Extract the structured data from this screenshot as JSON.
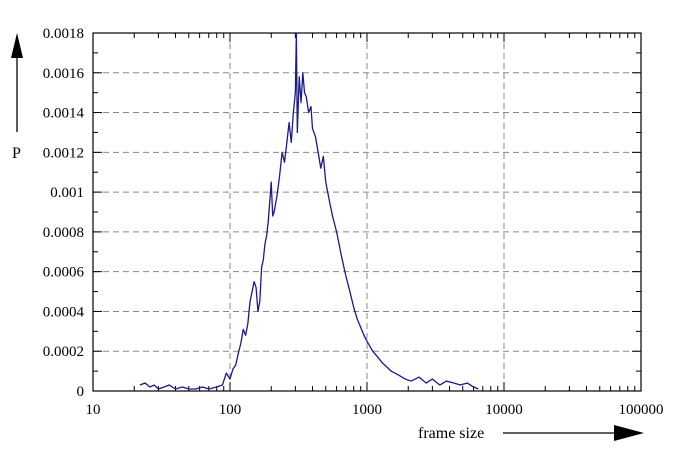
{
  "chart_data": {
    "type": "line",
    "title": "",
    "xlabel": "frame size",
    "ylabel": "P",
    "xscale": "log",
    "xlim": [
      10,
      100000
    ],
    "ylim": [
      0,
      0.0018
    ],
    "grid": true,
    "x_ticks": [
      10,
      100,
      1000,
      10000,
      100000
    ],
    "x_tick_labels": [
      "10",
      "100",
      "1000",
      "10000",
      "100000"
    ],
    "y_ticks": [
      0,
      0.0002,
      0.0004,
      0.0006,
      0.0008,
      0.001,
      0.0012,
      0.0014,
      0.0016,
      0.0018
    ],
    "y_tick_labels": [
      "0",
      "0.0002",
      "0.0004",
      "0.0006",
      "0.0008",
      "0.001",
      "0.0012",
      "0.0014",
      "0.0016",
      "0.0018"
    ],
    "series_color": "#1a1a8c",
    "series": [
      {
        "name": "",
        "points": [
          [
            22,
            3e-05
          ],
          [
            24,
            4e-05
          ],
          [
            26,
            2e-05
          ],
          [
            28,
            3e-05
          ],
          [
            30,
            1e-05
          ],
          [
            33,
            2e-05
          ],
          [
            36,
            3e-05
          ],
          [
            40,
            1e-05
          ],
          [
            45,
            2e-05
          ],
          [
            50,
            1e-05
          ],
          [
            56,
            1e-05
          ],
          [
            63,
            2e-05
          ],
          [
            70,
            1e-05
          ],
          [
            80,
            2e-05
          ],
          [
            88,
            3e-05
          ],
          [
            94,
            9e-05
          ],
          [
            100,
            6e-05
          ],
          [
            105,
            0.00011
          ],
          [
            110,
            0.00013
          ],
          [
            115,
            0.00019
          ],
          [
            120,
            0.00024
          ],
          [
            125,
            0.00031
          ],
          [
            130,
            0.00028
          ],
          [
            135,
            0.00034
          ],
          [
            140,
            0.00045
          ],
          [
            145,
            0.0005
          ],
          [
            150,
            0.00055
          ],
          [
            155,
            0.00052
          ],
          [
            160,
            0.0004
          ],
          [
            165,
            0.00045
          ],
          [
            170,
            0.00062
          ],
          [
            175,
            0.00066
          ],
          [
            180,
            0.00074
          ],
          [
            185,
            0.00078
          ],
          [
            190,
            0.00085
          ],
          [
            195,
            0.00095
          ],
          [
            200,
            0.00105
          ],
          [
            205,
            0.00088
          ],
          [
            210,
            0.0009
          ],
          [
            220,
            0.00098
          ],
          [
            230,
            0.00108
          ],
          [
            240,
            0.0012
          ],
          [
            250,
            0.00115
          ],
          [
            260,
            0.00125
          ],
          [
            270,
            0.00135
          ],
          [
            280,
            0.00125
          ],
          [
            290,
            0.0014
          ],
          [
            300,
            0.0015
          ],
          [
            305,
            0.0018
          ],
          [
            310,
            0.0013
          ],
          [
            320,
            0.00158
          ],
          [
            330,
            0.00145
          ],
          [
            340,
            0.0016
          ],
          [
            350,
            0.0015
          ],
          [
            360,
            0.00148
          ],
          [
            375,
            0.0014
          ],
          [
            390,
            0.00143
          ],
          [
            400,
            0.00132
          ],
          [
            420,
            0.00128
          ],
          [
            440,
            0.0012
          ],
          [
            460,
            0.00112
          ],
          [
            480,
            0.00118
          ],
          [
            500,
            0.00105
          ],
          [
            530,
            0.00096
          ],
          [
            560,
            0.00088
          ],
          [
            600,
            0.0008
          ],
          [
            650,
            0.00068
          ],
          [
            700,
            0.00058
          ],
          [
            750,
            0.0005
          ],
          [
            800,
            0.00042
          ],
          [
            850,
            0.00036
          ],
          [
            900,
            0.00032
          ],
          [
            950,
            0.00028
          ],
          [
            1000,
            0.00025
          ],
          [
            1100,
            0.0002
          ],
          [
            1200,
            0.00017
          ],
          [
            1300,
            0.00014
          ],
          [
            1400,
            0.00012
          ],
          [
            1500,
            0.0001
          ],
          [
            1700,
            8e-05
          ],
          [
            1900,
            6e-05
          ],
          [
            2100,
            5e-05
          ],
          [
            2400,
            7e-05
          ],
          [
            2700,
            4e-05
          ],
          [
            3000,
            6e-05
          ],
          [
            3400,
            3e-05
          ],
          [
            3800,
            5e-05
          ],
          [
            4300,
            4e-05
          ],
          [
            4800,
            3e-05
          ],
          [
            5400,
            4e-05
          ],
          [
            6000,
            2e-05
          ],
          [
            6500,
            1e-05
          ]
        ]
      }
    ]
  }
}
